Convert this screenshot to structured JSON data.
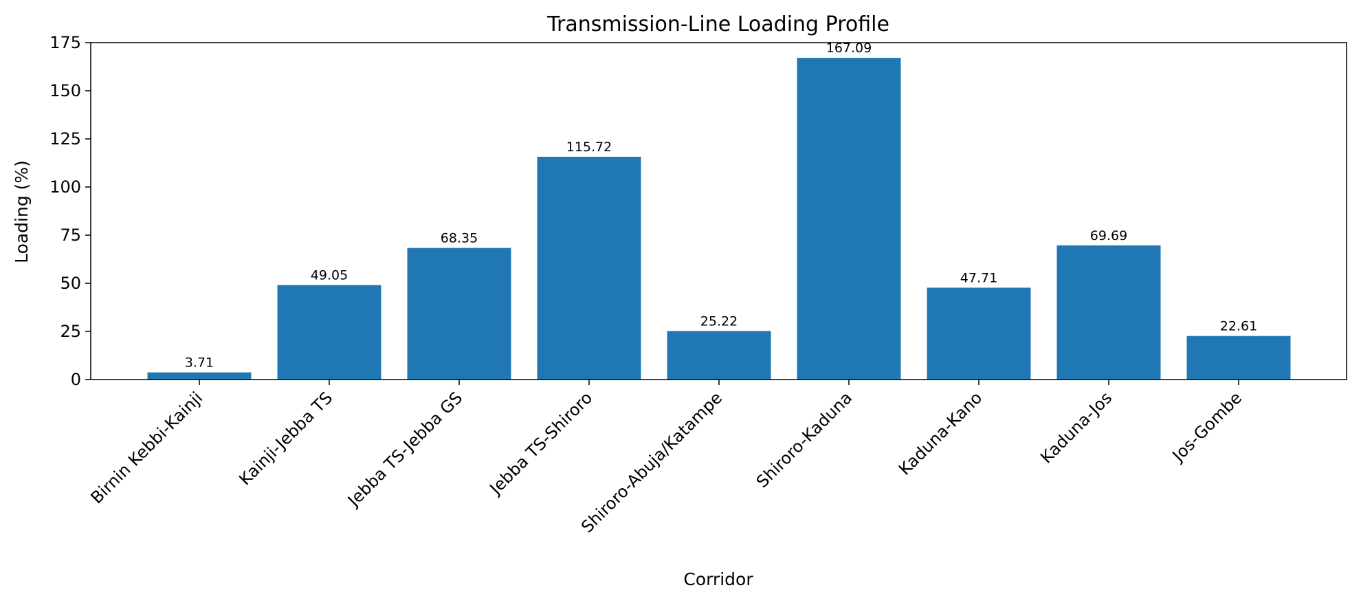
{
  "chart_data": {
    "type": "bar",
    "title": "Transmission-Line Loading Profile",
    "xlabel": "Corridor",
    "ylabel": "Loading (%)",
    "categories": [
      "Birnin Kebbi-Kainji",
      "Kainji-Jebba TS",
      "Jebba TS-Jebba GS",
      "Jebba TS-Shiroro",
      "Shiroro-Abuja/Katampe",
      "Shiroro-Kaduna",
      "Kaduna-Kano",
      "Kaduna-Jos",
      "Jos-Gombe"
    ],
    "values": [
      3.71,
      49.05,
      68.35,
      115.72,
      25.22,
      167.09,
      47.71,
      69.69,
      22.61
    ],
    "data_labels": [
      "3.71",
      "49.05",
      "68.35",
      "115.72",
      "25.22",
      "167.09",
      "47.71",
      "69.69",
      "22.61"
    ],
    "ylim": [
      0,
      175
    ],
    "yticks": [
      0,
      25,
      50,
      75,
      100,
      125,
      150,
      175
    ],
    "grid": false,
    "legend": "none",
    "bar_color": "#1f77b4"
  }
}
